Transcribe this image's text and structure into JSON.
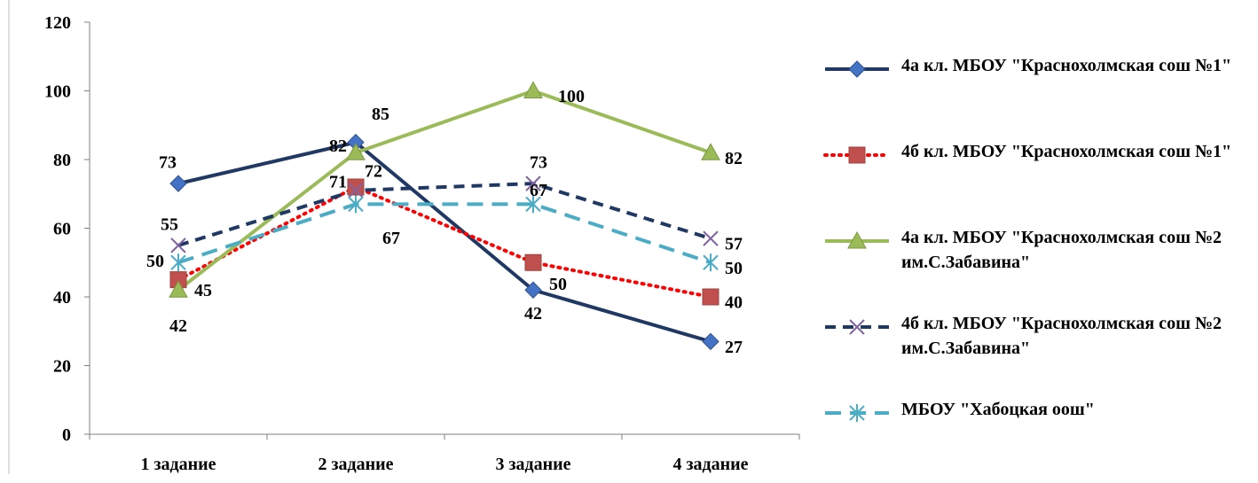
{
  "chart_data": {
    "type": "line",
    "categories": [
      "1 задание",
      "2 задание",
      "3 задание",
      "4 задание"
    ],
    "ylim": [
      0,
      120
    ],
    "yticks": [
      "0",
      "20",
      "40",
      "60",
      "80",
      "100",
      "120"
    ],
    "grid": false,
    "legend_position": "right",
    "series": [
      {
        "name": "4а кл. МБОУ \"Краснохолмская сош №1\"",
        "values": [
          73,
          85,
          42,
          27
        ],
        "color": "#1f3864",
        "dash": "solid",
        "marker": "diamond",
        "marker_color": "#4472c4"
      },
      {
        "name": "4б кл. МБОУ \"Краснохолмская сош №1\"",
        "values": [
          45,
          72,
          50,
          40
        ],
        "color": "#ff0000",
        "dash": "dotted",
        "marker": "square",
        "marker_color": "#c0504d"
      },
      {
        "name": "4а кл. МБОУ \"Краснохолмская сош №2 им.С.Забавина\"",
        "values": [
          42,
          82,
          100,
          82
        ],
        "color": "#9bbb59",
        "dash": "solid",
        "marker": "triangle",
        "marker_color": "#9bbb59"
      },
      {
        "name": "4б кл. МБОУ \"Краснохолмская сош №2 им.С.Забавина\"",
        "values": [
          55,
          71,
          73,
          57
        ],
        "color": "#1f3864",
        "dash": "dashed",
        "marker": "x",
        "marker_color": "#8064a2"
      },
      {
        "name": "МБОУ \"Хабоцкая оош\"",
        "values": [
          50,
          67,
          67,
          50
        ],
        "color": "#4bacc6",
        "dash": "longdash",
        "marker": "star",
        "marker_color": "#4bacc6"
      }
    ]
  }
}
